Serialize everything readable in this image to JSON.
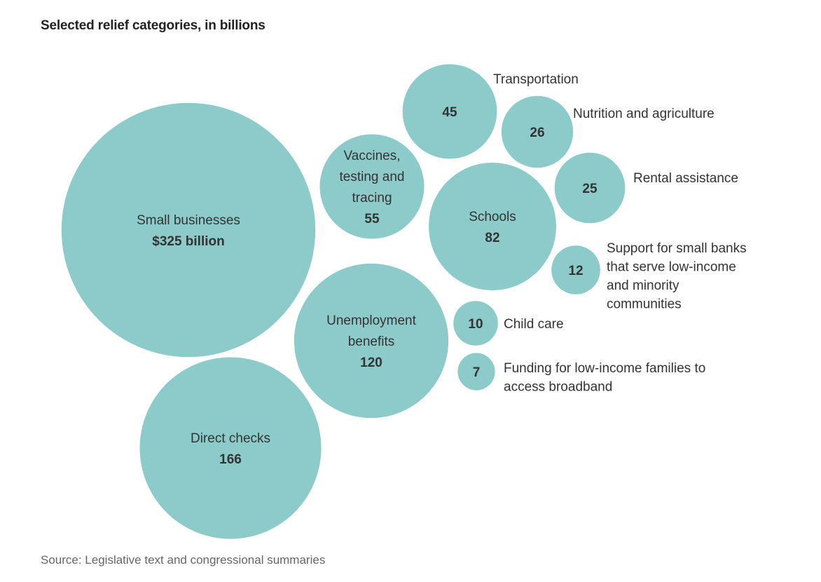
{
  "chart_data": {
    "type": "bubble",
    "title": "Selected relief categories, in billions",
    "source": "Source: Legislative text and congressional summaries",
    "bubble_color": "#8ccbca",
    "items": [
      {
        "key": "small-businesses",
        "label_lines": [
          "Small businesses"
        ],
        "value": 325,
        "value_label": "$325 billion",
        "label_position": "inside"
      },
      {
        "key": "direct-checks",
        "label_lines": [
          "Direct checks"
        ],
        "value": 166,
        "value_label": "166",
        "label_position": "inside"
      },
      {
        "key": "unemployment-benefits",
        "label_lines": [
          "Unemployment",
          "benefits"
        ],
        "value": 120,
        "value_label": "120",
        "label_position": "inside"
      },
      {
        "key": "schools",
        "label_lines": [
          "Schools"
        ],
        "value": 82,
        "value_label": "82",
        "label_position": "inside"
      },
      {
        "key": "vaccines",
        "label_lines": [
          "Vaccines,",
          "testing and",
          "tracing"
        ],
        "value": 55,
        "value_label": "55",
        "label_position": "inside"
      },
      {
        "key": "transportation",
        "label_lines": [
          "Transportation"
        ],
        "value": 45,
        "value_label": "45",
        "label_position": "outside"
      },
      {
        "key": "nutrition",
        "label_lines": [
          "Nutrition and agriculture"
        ],
        "value": 26,
        "value_label": "26",
        "label_position": "outside"
      },
      {
        "key": "rental-assistance",
        "label_lines": [
          "Rental assistance"
        ],
        "value": 25,
        "value_label": "25",
        "label_position": "outside"
      },
      {
        "key": "small-banks",
        "label_lines": [
          "Support for small banks",
          "that serve low-income",
          "and minority",
          "communities"
        ],
        "value": 12,
        "value_label": "12",
        "label_position": "outside"
      },
      {
        "key": "child-care",
        "label_lines": [
          "Child care"
        ],
        "value": 10,
        "value_label": "10",
        "label_position": "outside"
      },
      {
        "key": "broadband",
        "label_lines": [
          "Funding for low-income families to",
          "access broadband"
        ],
        "value": 7,
        "value_label": "7",
        "label_position": "outside"
      }
    ]
  }
}
